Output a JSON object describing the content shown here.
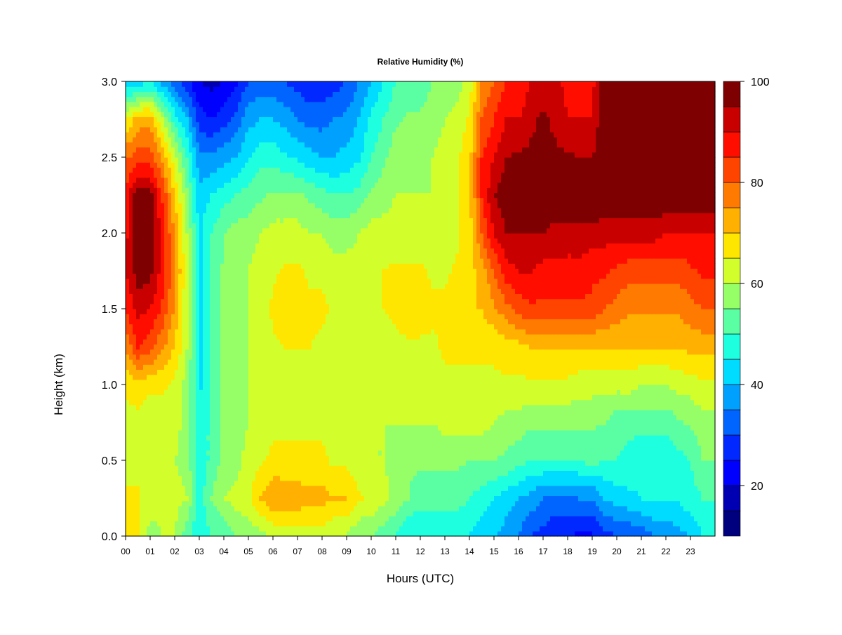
{
  "chart_data": {
    "type": "heatmap",
    "title": "Relative Humidity (%)",
    "xlabel": "Hours (UTC)",
    "ylabel": "Height (km)",
    "xlim": [
      0,
      24
    ],
    "ylim": [
      0,
      3
    ],
    "x_ticks": [
      "00",
      "01",
      "02",
      "03",
      "04",
      "05",
      "06",
      "07",
      "08",
      "09",
      "10",
      "11",
      "12",
      "13",
      "14",
      "15",
      "16",
      "17",
      "18",
      "19",
      "20",
      "21",
      "22",
      "23"
    ],
    "y_ticks": [
      "0.0",
      "0.5",
      "1.0",
      "1.5",
      "2.0",
      "2.5",
      "3.0"
    ],
    "colorbar": {
      "ticks": [
        "20",
        "40",
        "60",
        "80",
        "100"
      ],
      "levels": [
        10,
        15,
        20,
        25,
        30,
        35,
        40,
        45,
        50,
        55,
        60,
        65,
        70,
        75,
        80,
        85,
        90,
        95,
        100
      ],
      "colors": [
        "#00007f",
        "#0000b2",
        "#0000ff",
        "#0028ff",
        "#0064ff",
        "#00a0ff",
        "#00dcff",
        "#1effe0",
        "#5affa4",
        "#96ff68",
        "#d2ff2c",
        "#ffe600",
        "#ffb000",
        "#ff7a00",
        "#ff4400",
        "#ff0e00",
        "#c80000",
        "#7f0000"
      ]
    },
    "grid": false,
    "x_hours": [
      0,
      0.5,
      1,
      1.5,
      2,
      2.5,
      3,
      3.5,
      4,
      4.5,
      5,
      5.5,
      6,
      6.5,
      7,
      7.5,
      8,
      8.5,
      9,
      9.5,
      10,
      10.5,
      11,
      11.5,
      12,
      12.5,
      13,
      13.5,
      14,
      14.5,
      15,
      15.5,
      16,
      16.5,
      17,
      17.5,
      18,
      18.5,
      19,
      19.5,
      20,
      20.5,
      21,
      21.5,
      22,
      22.5,
      23,
      23.5,
      24
    ],
    "heights_km": [
      0.0,
      0.25,
      0.5,
      0.75,
      1.0,
      1.25,
      1.5,
      1.75,
      2.0,
      2.25,
      2.5,
      2.75,
      3.0
    ],
    "rh_percent": [
      [
        70,
        65,
        58,
        60,
        60,
        52,
        45,
        50,
        50,
        55,
        57,
        58,
        60,
        62,
        62,
        63,
        62,
        60,
        60,
        55,
        55,
        52,
        50,
        45,
        45,
        45,
        45,
        45,
        45,
        42,
        40,
        38,
        35,
        30,
        28,
        25,
        25,
        24,
        24,
        28,
        30,
        30,
        32,
        35,
        35,
        38,
        40,
        45,
        45
      ],
      [
        67,
        66,
        62,
        62,
        62,
        60,
        48,
        55,
        60,
        62,
        64,
        70,
        75,
        74,
        73,
        72,
        72,
        70,
        70,
        66,
        64,
        62,
        58,
        55,
        52,
        52,
        52,
        52,
        50,
        48,
        45,
        42,
        40,
        38,
        35,
        34,
        34,
        35,
        35,
        40,
        42,
        44,
        45,
        46,
        46,
        46,
        48,
        50,
        50
      ],
      [
        62,
        63,
        62,
        62,
        60,
        58,
        45,
        52,
        56,
        58,
        62,
        64,
        66,
        66,
        66,
        66,
        66,
        64,
        64,
        62,
        60,
        60,
        58,
        56,
        56,
        56,
        56,
        56,
        55,
        55,
        55,
        54,
        52,
        50,
        50,
        50,
        50,
        50,
        52,
        50,
        50,
        48,
        46,
        46,
        46,
        48,
        50,
        55,
        55
      ],
      [
        63,
        63,
        62,
        62,
        62,
        58,
        45,
        52,
        56,
        58,
        60,
        62,
        64,
        64,
        64,
        64,
        64,
        62,
        62,
        62,
        60,
        60,
        60,
        60,
        60,
        60,
        62,
        62,
        62,
        62,
        60,
        58,
        58,
        56,
        56,
        56,
        56,
        56,
        56,
        55,
        52,
        52,
        52,
        52,
        52,
        54,
        56,
        58,
        58
      ],
      [
        66,
        68,
        66,
        66,
        64,
        58,
        44,
        50,
        56,
        58,
        60,
        62,
        64,
        64,
        64,
        64,
        64,
        62,
        62,
        62,
        62,
        62,
        62,
        62,
        62,
        62,
        64,
        64,
        64,
        64,
        64,
        64,
        64,
        64,
        64,
        64,
        64,
        62,
        62,
        62,
        62,
        62,
        60,
        60,
        60,
        62,
        62,
        64,
        64
      ],
      [
        76,
        85,
        82,
        76,
        70,
        60,
        44,
        50,
        56,
        58,
        60,
        62,
        64,
        65,
        65,
        65,
        64,
        63,
        63,
        63,
        63,
        63,
        64,
        64,
        64,
        64,
        66,
        66,
        66,
        66,
        66,
        68,
        68,
        70,
        70,
        70,
        70,
        70,
        70,
        70,
        70,
        70,
        70,
        70,
        70,
        70,
        72,
        72,
        72
      ],
      [
        85,
        92,
        90,
        84,
        74,
        60,
        44,
        50,
        56,
        58,
        60,
        62,
        66,
        70,
        68,
        66,
        66,
        64,
        64,
        64,
        64,
        65,
        66,
        68,
        68,
        66,
        66,
        68,
        70,
        70,
        74,
        78,
        82,
        84,
        84,
        84,
        84,
        84,
        84,
        80,
        78,
        76,
        76,
        76,
        76,
        76,
        78,
        80,
        80
      ],
      [
        90,
        98,
        97,
        88,
        76,
        62,
        44,
        50,
        56,
        58,
        60,
        62,
        64,
        66,
        66,
        64,
        64,
        62,
        62,
        62,
        64,
        65,
        66,
        66,
        66,
        64,
        64,
        66,
        68,
        72,
        80,
        88,
        90,
        90,
        88,
        88,
        88,
        88,
        86,
        86,
        84,
        82,
        82,
        82,
        82,
        82,
        84,
        86,
        86
      ],
      [
        88,
        100,
        100,
        88,
        74,
        60,
        44,
        50,
        55,
        57,
        58,
        60,
        62,
        62,
        62,
        60,
        60,
        58,
        58,
        60,
        62,
        62,
        62,
        62,
        62,
        62,
        62,
        64,
        68,
        80,
        90,
        95,
        95,
        95,
        95,
        93,
        93,
        93,
        93,
        92,
        92,
        92,
        92,
        92,
        90,
        90,
        90,
        90,
        90
      ],
      [
        86,
        99,
        98,
        84,
        70,
        56,
        42,
        45,
        48,
        50,
        52,
        54,
        56,
        56,
        56,
        54,
        52,
        50,
        50,
        52,
        56,
        58,
        60,
        60,
        60,
        60,
        62,
        64,
        68,
        85,
        95,
        98,
        100,
        100,
        100,
        100,
        100,
        100,
        100,
        100,
        100,
        100,
        100,
        100,
        100,
        100,
        100,
        100,
        100
      ],
      [
        80,
        82,
        82,
        74,
        62,
        50,
        36,
        36,
        38,
        40,
        45,
        48,
        48,
        46,
        44,
        42,
        40,
        40,
        42,
        44,
        50,
        54,
        58,
        58,
        58,
        60,
        62,
        64,
        68,
        85,
        90,
        95,
        96,
        96,
        96,
        96,
        96,
        95,
        95,
        100,
        100,
        100,
        100,
        100,
        100,
        100,
        100,
        100,
        100
      ],
      [
        65,
        72,
        74,
        60,
        48,
        40,
        28,
        25,
        28,
        32,
        38,
        40,
        40,
        38,
        35,
        33,
        33,
        35,
        36,
        40,
        46,
        50,
        54,
        56,
        56,
        58,
        60,
        62,
        66,
        80,
        85,
        90,
        90,
        94,
        96,
        94,
        90,
        90,
        90,
        100,
        100,
        100,
        100,
        100,
        100,
        100,
        100,
        100,
        100
      ],
      [
        40,
        42,
        44,
        38,
        32,
        26,
        20,
        18,
        20,
        24,
        30,
        32,
        32,
        30,
        28,
        26,
        26,
        28,
        30,
        35,
        40,
        45,
        50,
        52,
        52,
        55,
        56,
        58,
        62,
        75,
        80,
        85,
        85,
        90,
        92,
        92,
        88,
        88,
        88,
        100,
        100,
        100,
        100,
        100,
        100,
        100,
        100,
        100,
        100
      ]
    ]
  }
}
